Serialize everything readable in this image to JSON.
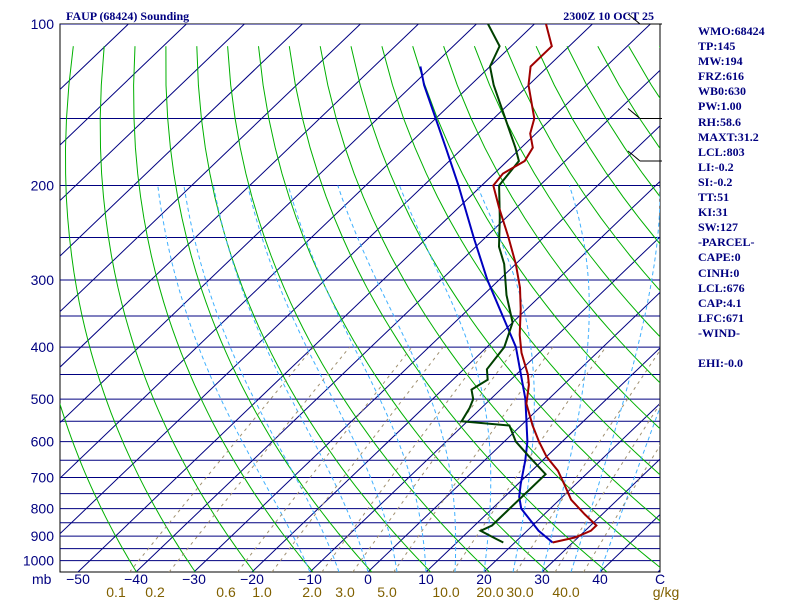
{
  "chart_data": {
    "type": "skew-t",
    "title": "FAUP (68424) Sounding",
    "valid_time": "2300Z 10 OCT 25",
    "ylabel": "mb",
    "pressure_ticks": [
      "100",
      "200",
      "300",
      "400",
      "500",
      "600",
      "700",
      "800",
      "900",
      "1000"
    ],
    "temperature_ticks": [
      "−50",
      "−40",
      "−30",
      "−20",
      "−10",
      "0",
      "10",
      "20",
      "30",
      "40",
      "C"
    ],
    "mixing_ratio_ticks": [
      "0.1",
      "0.2",
      "0.6",
      "1.0",
      "2.0",
      "3.0",
      "5.0",
      "10.0",
      "20.0",
      "30.0",
      "40.0",
      "g/kg"
    ],
    "temperature_profile": [
      {
        "p": 925,
        "t": 26.5
      },
      {
        "p": 905,
        "t": 29.5
      },
      {
        "p": 880,
        "t": 31
      },
      {
        "p": 860,
        "t": 31
      },
      {
        "p": 820,
        "t": 27
      },
      {
        "p": 770,
        "t": 22
      },
      {
        "p": 720,
        "t": 18
      },
      {
        "p": 680,
        "t": 14.5
      },
      {
        "p": 640,
        "t": 10
      },
      {
        "p": 600,
        "t": 6
      },
      {
        "p": 560,
        "t": 2
      },
      {
        "p": 510,
        "t": -3
      },
      {
        "p": 470,
        "t": -6
      },
      {
        "p": 450,
        "t": -8
      },
      {
        "p": 410,
        "t": -13
      },
      {
        "p": 380,
        "t": -16.5
      },
      {
        "p": 340,
        "t": -21
      },
      {
        "p": 310,
        "t": -25
      },
      {
        "p": 280,
        "t": -30
      },
      {
        "p": 250,
        "t": -36
      },
      {
        "p": 220,
        "t": -43
      },
      {
        "p": 200,
        "t": -48
      },
      {
        "p": 190,
        "t": -48.5
      },
      {
        "p": 180,
        "t": -47
      },
      {
        "p": 170,
        "t": -48
      },
      {
        "p": 160,
        "t": -51
      },
      {
        "p": 150,
        "t": -53
      },
      {
        "p": 130,
        "t": -60
      },
      {
        "p": 120,
        "t": -63
      },
      {
        "p": 110,
        "t": -63
      },
      {
        "p": 100,
        "t": -68
      }
    ],
    "dewpoint_profile": [
      {
        "p": 925,
        "t": 18
      },
      {
        "p": 910,
        "t": 16
      },
      {
        "p": 880,
        "t": 12
      },
      {
        "p": 860,
        "t": 13
      },
      {
        "p": 800,
        "t": 13
      },
      {
        "p": 740,
        "t": 13
      },
      {
        "p": 690,
        "t": 13
      },
      {
        "p": 640,
        "t": 7
      },
      {
        "p": 600,
        "t": 2
      },
      {
        "p": 560,
        "t": -2
      },
      {
        "p": 550,
        "t": -11
      },
      {
        "p": 520,
        "t": -12
      },
      {
        "p": 500,
        "t": -13
      },
      {
        "p": 480,
        "t": -15
      },
      {
        "p": 460,
        "t": -14
      },
      {
        "p": 440,
        "t": -16
      },
      {
        "p": 400,
        "t": -17
      },
      {
        "p": 360,
        "t": -20
      },
      {
        "p": 320,
        "t": -26
      },
      {
        "p": 280,
        "t": -32
      },
      {
        "p": 260,
        "t": -36
      },
      {
        "p": 230,
        "t": -41
      },
      {
        "p": 200,
        "t": -47
      },
      {
        "p": 180,
        "t": -48
      },
      {
        "p": 170,
        "t": -51
      },
      {
        "p": 150,
        "t": -58
      },
      {
        "p": 130,
        "t": -66
      },
      {
        "p": 120,
        "t": -70
      },
      {
        "p": 110,
        "t": -72
      },
      {
        "p": 100,
        "t": -78
      }
    ],
    "parcel_profile": [
      {
        "p": 925,
        "t": 26.5
      },
      {
        "p": 880,
        "t": 22
      },
      {
        "p": 800,
        "t": 15
      },
      {
        "p": 760,
        "t": 12.5
      },
      {
        "p": 720,
        "t": 10.5
      },
      {
        "p": 650,
        "t": 7
      },
      {
        "p": 600,
        "t": 4
      },
      {
        "p": 500,
        "t": -4
      },
      {
        "p": 400,
        "t": -15
      },
      {
        "p": 300,
        "t": -32
      },
      {
        "p": 250,
        "t": -42
      },
      {
        "p": 200,
        "t": -54
      },
      {
        "p": 170,
        "t": -63
      },
      {
        "p": 150,
        "t": -70
      },
      {
        "p": 130,
        "t": -78
      },
      {
        "p": 120,
        "t": -82
      }
    ],
    "wind_barb_levels": [
      100,
      150,
      180
    ]
  },
  "stats": [
    "WMO:68424",
    "TP:145",
    "MW:194",
    "FRZ:616",
    "WB0:630",
    "PW:1.00",
    "RH:58.6",
    "MAXT:31.2",
    "LCL:803",
    "LI:-0.2",
    "SI:-0.2",
    "TT:51",
    "KI:31",
    "SW:127",
    "-PARCEL-",
    "CAPE:0",
    "CINH:0",
    "LCL:676",
    "CAP:4.1",
    "LFC:671",
    "-WIND-",
    "",
    "EHI:-0.0"
  ],
  "colors": {
    "isobar": "#000080",
    "isotherm": "#000080",
    "dry_adiabat": "#00b000",
    "moist_adiabat": "#40b0ff",
    "mixing_ratio": "#a09070",
    "temperature": "#a00000",
    "dewpoint": "#004000",
    "parcel": "#0000c0",
    "axis_label": "#000080",
    "mixing_label": "#806000"
  }
}
